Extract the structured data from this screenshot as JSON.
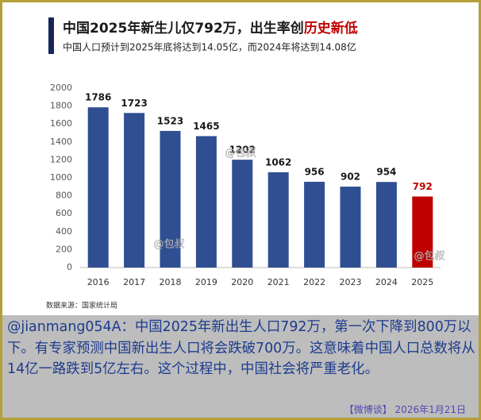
{
  "chart_data": {
    "type": "bar",
    "title": "中国2025年新生儿仅792万，出生率创",
    "title_highlight": "历史新低",
    "subtitle": "中国人口预计到2025年底将达到14.05亿，而2024年将达到14.08亿",
    "source": "数据来源：国家统计局",
    "watermark": "@包叔",
    "categories": [
      "2016",
      "2017",
      "2018",
      "2019",
      "2020",
      "2021",
      "2022",
      "2023",
      "2024",
      "2025"
    ],
    "values": [
      1786,
      1723,
      1523,
      1465,
      1202,
      1062,
      956,
      902,
      954,
      792
    ],
    "colors": [
      "#2f4f92",
      "#2f4f92",
      "#2f4f92",
      "#2f4f92",
      "#2f4f92",
      "#2f4f92",
      "#2f4f92",
      "#2f4f92",
      "#2f4f92",
      "#c00000"
    ],
    "label_colors": [
      "#1a1a1a",
      "#1a1a1a",
      "#1a1a1a",
      "#1a1a1a",
      "#1a1a1a",
      "#1a1a1a",
      "#1a1a1a",
      "#1a1a1a",
      "#1a1a1a",
      "#c00000"
    ],
    "ylim": [
      0,
      2000
    ],
    "yticks": [
      0,
      200,
      400,
      600,
      800,
      1000,
      1200,
      1400,
      1600,
      1800,
      2000
    ],
    "grid": false
  },
  "post": {
    "text": "@jianmang054A：中国2025年新出生人口792万，第一次下降到800万以下。有专家预测中国新出生人口将会跌破700万。这意味着中国人口总数将从14亿一路跌到5亿左右。这个过程中，中国社会将严重老化。",
    "footer": "【微博谈】 2026年1月21日"
  }
}
